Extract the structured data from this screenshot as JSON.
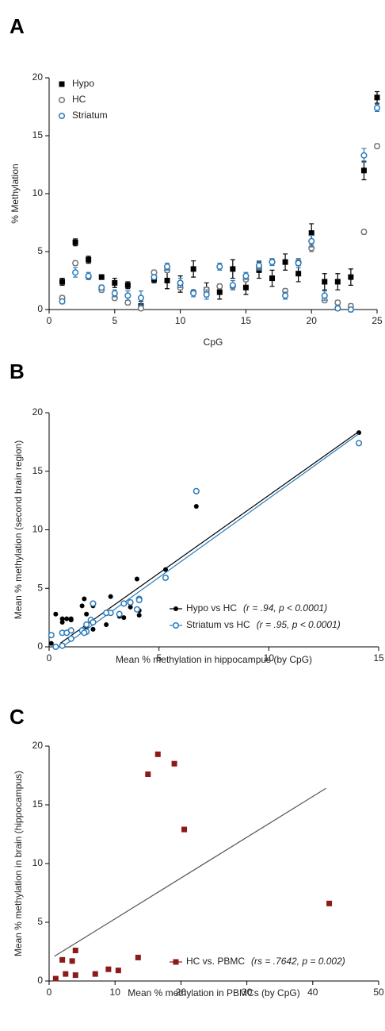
{
  "chart_data": [
    {
      "type": "scatter",
      "panel": "A",
      "x_label": "CpG",
      "y_label": "% Methylation",
      "x": [
        1,
        2,
        3,
        4,
        5,
        6,
        7,
        8,
        9,
        10,
        11,
        12,
        13,
        14,
        15,
        16,
        17,
        18,
        19,
        20,
        21,
        22,
        23,
        24,
        25
      ],
      "xlim": [
        0,
        25
      ],
      "xticks": [
        0,
        5,
        10,
        15,
        20,
        25
      ],
      "ylim": [
        0,
        20
      ],
      "yticks": [
        0,
        5,
        10,
        15,
        20
      ],
      "legend": "upper left",
      "series": [
        {
          "name": "Hypo",
          "color": "#000000",
          "marker": "filled-square",
          "values": [
            2.4,
            5.8,
            4.3,
            2.8,
            2.3,
            2.1,
            0.3,
            2.6,
            2.5,
            2.2,
            3.5,
            1.7,
            1.5,
            3.5,
            1.9,
            3.4,
            2.7,
            4.1,
            3.1,
            6.6,
            2.4,
            2.4,
            2.8,
            12.0,
            18.3
          ],
          "errors": [
            0.3,
            0.3,
            0.3,
            0.2,
            0.4,
            0.3,
            0.4,
            0.3,
            0.7,
            0.7,
            0.7,
            0.6,
            0.6,
            0.8,
            0.6,
            0.7,
            0.7,
            0.7,
            0.7,
            0.8,
            0.7,
            0.7,
            0.7,
            0.8,
            0.5
          ]
        },
        {
          "name": "HC",
          "color": "#777777",
          "marker": "open-circle",
          "values": [
            1.0,
            4.0,
            2.8,
            1.7,
            1.0,
            0.6,
            0.1,
            3.2,
            3.4,
            1.9,
            1.5,
            1.7,
            2.0,
            2.0,
            2.6,
            3.7,
            4.1,
            1.6,
            4.1,
            5.3,
            0.8,
            0.6,
            0.3,
            6.7,
            14.1
          ],
          "errors": [
            0.2,
            0.2,
            0.2,
            0.2,
            0.2,
            0.2,
            0.2,
            0.2,
            0.2,
            0.2,
            0.2,
            0.2,
            0.2,
            0.2,
            0.2,
            0.2,
            0.2,
            0.2,
            0.2,
            0.3,
            0.2,
            0.2,
            0.2,
            0.2,
            0.2
          ]
        },
        {
          "name": "Striatum",
          "color": "#2b7bba",
          "marker": "open-circle",
          "values": [
            0.7,
            3.2,
            2.9,
            1.9,
            1.4,
            1.2,
            1.0,
            2.8,
            3.7,
            2.3,
            1.4,
            1.3,
            3.7,
            2.1,
            2.9,
            3.8,
            4.1,
            1.2,
            4.0,
            5.9,
            1.2,
            0.1,
            0.0,
            13.3,
            17.4
          ],
          "errors": [
            0.2,
            0.4,
            0.3,
            0.2,
            0.3,
            0.4,
            0.6,
            0.2,
            0.3,
            0.4,
            0.3,
            0.4,
            0.3,
            0.4,
            0.3,
            0.4,
            0.3,
            0.3,
            0.4,
            0.5,
            0.4,
            0.2,
            0.2,
            0.6,
            0.3
          ]
        }
      ]
    },
    {
      "type": "scatter",
      "panel": "B",
      "x_label": "Mean % methylation in hippocampus (by CpG)",
      "y_label": "Mean % methylation (second brain region)",
      "xlim": [
        0,
        15
      ],
      "xticks": [
        0,
        5,
        10,
        15
      ],
      "ylim": [
        0,
        20
      ],
      "yticks": [
        0,
        5,
        10,
        15,
        20
      ],
      "legend": "lower right",
      "series": [
        {
          "name": "Hypo vs HC",
          "annotation": "(r = .94, p < 0.0001)",
          "color": "#000000",
          "marker": "filled-circle",
          "x": [
            1.0,
            4.0,
            2.8,
            1.7,
            1.0,
            0.6,
            0.1,
            3.2,
            3.4,
            1.9,
            1.5,
            1.7,
            2.0,
            2.0,
            2.6,
            3.7,
            4.1,
            1.6,
            4.1,
            5.3,
            0.8,
            0.6,
            0.3,
            6.7,
            14.1
          ],
          "values": [
            2.4,
            5.8,
            4.3,
            2.8,
            2.3,
            2.1,
            0.3,
            2.6,
            2.5,
            2.2,
            3.5,
            1.7,
            1.5,
            3.5,
            1.9,
            3.4,
            2.7,
            4.1,
            3.1,
            6.6,
            2.4,
            2.4,
            2.8,
            12.0,
            18.3
          ],
          "fit": {
            "x": [
              0.5,
              14.1
            ],
            "values": [
              0.3,
              18.4
            ]
          }
        },
        {
          "name": "Striatum vs HC",
          "annotation": "(r = .95, p < 0.0001)",
          "color": "#2b7bba",
          "marker": "open-circle",
          "x": [
            1.0,
            4.0,
            2.8,
            1.7,
            1.0,
            0.6,
            0.1,
            3.2,
            3.4,
            1.9,
            1.5,
            1.7,
            2.0,
            2.0,
            2.6,
            3.7,
            4.1,
            1.6,
            4.1,
            5.3,
            0.8,
            0.6,
            0.3,
            6.7,
            14.1
          ],
          "values": [
            0.7,
            3.2,
            2.9,
            1.9,
            1.4,
            1.2,
            1.0,
            2.8,
            3.7,
            2.3,
            1.4,
            1.3,
            3.7,
            2.1,
            2.9,
            3.8,
            4.1,
            1.2,
            4.0,
            5.9,
            1.2,
            0.1,
            0.0,
            13.3,
            17.4
          ],
          "fit": {
            "x": [
              0.6,
              14.1
            ],
            "values": [
              0.0,
              18.2
            ]
          }
        }
      ]
    },
    {
      "type": "scatter",
      "panel": "C",
      "x_label": "Mean % methylation in PBMCs (by CpG)",
      "y_label": "Mean % methylation in brain (hippocampus)",
      "xlim": [
        0,
        50
      ],
      "xticks": [
        0,
        10,
        20,
        30,
        40,
        50
      ],
      "ylim": [
        0,
        20
      ],
      "yticks": [
        0,
        5,
        10,
        15,
        20
      ],
      "legend": "lower right",
      "series": [
        {
          "name": "HC vs. PBMC",
          "annotation": "(rs = .7642, p = 0.002)",
          "color": "#8b1a1a",
          "marker": "filled-square",
          "x": [
            1.0,
            2.0,
            2.5,
            3.5,
            4.0,
            4.0,
            7.0,
            9.0,
            10.5,
            13.5,
            15.0,
            16.5,
            19.0,
            20.5,
            42.5
          ],
          "values": [
            0.2,
            1.8,
            0.6,
            1.7,
            2.6,
            0.5,
            0.6,
            1.0,
            0.9,
            2.0,
            17.6,
            19.3,
            18.5,
            12.9,
            6.6
          ],
          "fit": {
            "x": [
              0.8,
              42.0
            ],
            "values": [
              2.1,
              16.4
            ],
            "color": "#555555"
          }
        }
      ]
    }
  ]
}
